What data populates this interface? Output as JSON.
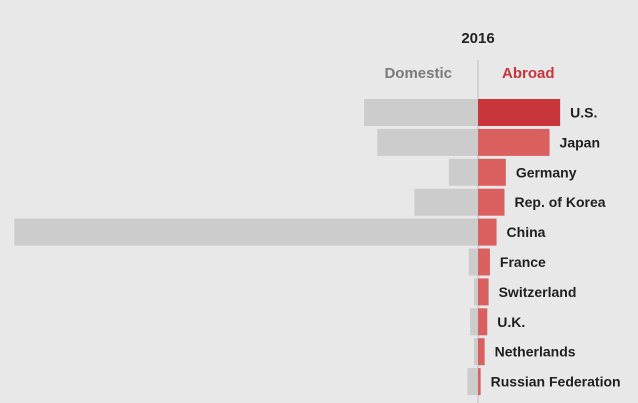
{
  "chart_data": {
    "type": "bar",
    "title": "2016",
    "series": [
      {
        "name": "Domestic",
        "color": "#cccccc",
        "values": [
          43,
          38,
          11,
          24,
          175,
          3.5,
          1.5,
          3,
          1.5,
          4
        ]
      },
      {
        "name": "Abroad",
        "color": "#c8353b",
        "values": [
          31,
          27,
          10.5,
          10,
          7,
          4.5,
          4,
          3.5,
          2.5,
          1
        ]
      }
    ],
    "categories": [
      "U.S.",
      "Japan",
      "Germany",
      "Rep. of Korea",
      "China",
      "France",
      "Switzerland",
      "U.K.",
      "Netherlands",
      "Russian Federation"
    ],
    "colors": {
      "background": "#e8e8e8",
      "domestic_label": "#7a7a7a",
      "abroad_label": "#c8353b",
      "abroad_top": "#c8353b",
      "abroad_rest": "#d9605f"
    }
  }
}
